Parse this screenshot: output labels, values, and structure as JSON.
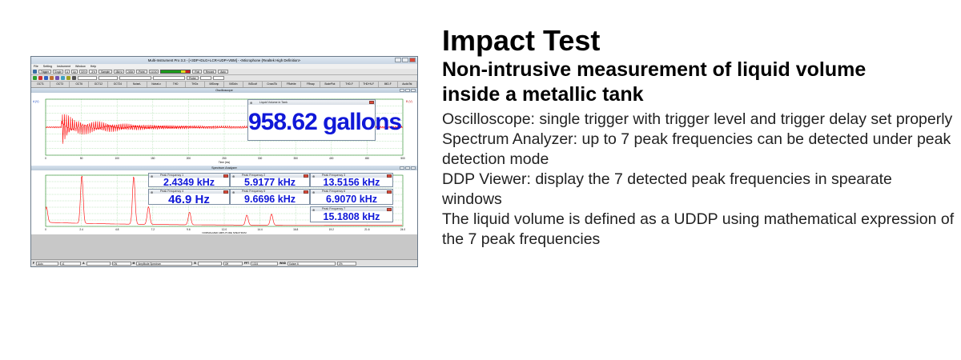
{
  "heading": "Impact Test",
  "subheading": "Non-intrusive measurement of liquid volume inside a metallic tank",
  "paragraphs": [
    "Oscilloscope: single trigger with trigger level and trigger delay set properly",
    "Spectrum Analyzer: up to 7 peak frequencies can be detected under peak detection mode",
    "DDP Viewer: display the 7 detected peak frequencies in spearate windows",
    "The liquid volume is defined as a UDDP using mathematical expression of the 7 peak frequencies"
  ],
  "app": {
    "title": "Multi-Instrument Pro 3.3  -  [+3DP+DLG+LCR+UDP+VBM]  -  <Microphone (Realtek High Definition>",
    "menu": [
      "File",
      "Setting",
      "Instrument",
      "Window",
      "Help"
    ],
    "toolbar": {
      "trigger_label": "Trigger",
      "trigger_mode": "Single",
      "channel": "A",
      "edge": "Up",
      "level": "50%",
      "delay": "-5%",
      "sampling_label": "Sample",
      "sample_rate": "48kHz",
      "bits": "24Bit",
      "point_label": "Point",
      "points": "24000",
      "roll_label": "Roll",
      "record_label": "Record",
      "auto_label": "Auto",
      "probe_label": "Probe"
    },
    "tabs": [
      "OCT1",
      "OCT3",
      "OCT6",
      "OCT12",
      "OCT24",
      "NoiseL",
      "NoiseLx",
      "THD",
      "THDx",
      "IMDsmp",
      "IMDdin",
      "IMDccif",
      "CrossTlk",
      "FRwhite",
      "FRswp",
      "BodePlot",
      "THD-F",
      "THD+N-F",
      "IMD-F",
      "AudioTst"
    ],
    "oscilloscope": {
      "title": "Oscilloscope",
      "left_axis_label": "A (V)",
      "right_axis_label": "B (V)",
      "x_axis_label": "Time (ms)",
      "x_ticks": [
        "0",
        "50",
        "100",
        "150",
        "200",
        "250",
        "300",
        "350",
        "400",
        "450",
        "500"
      ]
    },
    "spectrum": {
      "title": "Spectrum Analyzer",
      "x_axis_label": "NORMALIZED AMPLITUDE SPECTRUM",
      "x_ticks": [
        "0",
        "2.4",
        "4.8",
        "7.2",
        "9.6",
        "12.0",
        "14.4",
        "16.8",
        "19.2",
        "21.6",
        "24.0"
      ]
    },
    "volume_window": {
      "title": "Liquid Volume in Tank",
      "value": "958.62 gallons"
    },
    "peak_windows": [
      {
        "title": "Peak Frequency 1",
        "value": "2.4349 kHz"
      },
      {
        "title": "Peak Frequency 2",
        "value": "5.9177 kHz"
      },
      {
        "title": "Peak Frequency 3",
        "value": "13.5156 kHz"
      },
      {
        "title": "Peak Frequency 4",
        "value": "46.9 Hz"
      },
      {
        "title": "Peak Frequency 5",
        "value": "9.6696 kHz"
      },
      {
        "title": "Peak Frequency 6",
        "value": "6.9070 kHz"
      },
      {
        "title": "Peak Frequency 7",
        "value": "15.1808 kHz"
      }
    ],
    "bottombar": {
      "mode": "Auto",
      "scale": "x1",
      "ch_a": "A",
      "on_a": "ON",
      "m_label": "M",
      "amp": "Amplitude Spectrum",
      "ch_b": "B",
      "on_b": "Off",
      "fft_label": "FFT",
      "fft_size": "1024",
      "wnd_label": "WND",
      "window": "Kaiser 6",
      "overlap": "0%"
    }
  },
  "colors": {
    "signal": "#ff0000",
    "ddp_value": "#1018d8",
    "grid": "#9ed89e"
  }
}
